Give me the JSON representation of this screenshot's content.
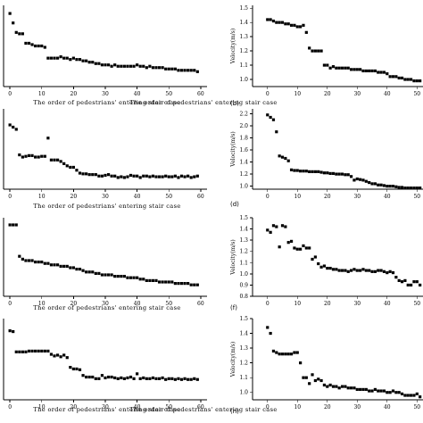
{
  "chart_data": [
    {
      "type": "scatter",
      "xlabel": "The order of pedestrians' entering stair case",
      "ylabel": "",
      "xticks": [
        0,
        10,
        20,
        30,
        40,
        50,
        60
      ],
      "xlim": [
        -2,
        62
      ],
      "ylim": [
        0.9,
        1.5
      ],
      "x": [
        0,
        1,
        2,
        3,
        4,
        5,
        6,
        7,
        8,
        9,
        10,
        11,
        12,
        13,
        14,
        15,
        16,
        17,
        18,
        19,
        20,
        21,
        22,
        23,
        24,
        25,
        26,
        27,
        28,
        29,
        30,
        31,
        32,
        33,
        34,
        35,
        36,
        37,
        38,
        39,
        40,
        41,
        42,
        43,
        44,
        45,
        46,
        47,
        48,
        49,
        50,
        51,
        52,
        53,
        54,
        55,
        56,
        57,
        58,
        59
      ],
      "y": [
        1.44,
        1.37,
        1.3,
        1.29,
        1.29,
        1.22,
        1.22,
        1.21,
        1.2,
        1.2,
        1.2,
        1.19,
        1.11,
        1.11,
        1.11,
        1.11,
        1.12,
        1.11,
        1.11,
        1.1,
        1.11,
        1.1,
        1.1,
        1.09,
        1.09,
        1.08,
        1.08,
        1.07,
        1.07,
        1.06,
        1.06,
        1.06,
        1.05,
        1.06,
        1.05,
        1.05,
        1.05,
        1.05,
        1.05,
        1.05,
        1.06,
        1.05,
        1.05,
        1.04,
        1.05,
        1.04,
        1.04,
        1.04,
        1.04,
        1.03,
        1.03,
        1.03,
        1.03,
        1.02,
        1.02,
        1.02,
        1.02,
        1.02,
        1.02,
        1.01
      ]
    },
    {
      "type": "scatter",
      "label": "(b)",
      "xlabel": "The order of pedestrians' entering stair case",
      "ylabel": "Velocity(m/s)",
      "xticks": [
        0,
        10,
        20,
        30,
        40,
        50
      ],
      "yticks": [
        "1.0",
        "1.1",
        "1.2",
        "1.3",
        "1.4",
        "1.5"
      ],
      "xlim": [
        -5,
        52
      ],
      "ylim": [
        0.95,
        1.52
      ],
      "x": [
        0,
        1,
        2,
        3,
        4,
        5,
        6,
        7,
        8,
        9,
        10,
        11,
        12,
        13,
        14,
        15,
        16,
        17,
        18,
        19,
        20,
        21,
        22,
        23,
        24,
        25,
        26,
        27,
        28,
        29,
        30,
        31,
        32,
        33,
        34,
        35,
        36,
        37,
        38,
        39,
        40,
        41,
        42,
        43,
        44,
        45,
        46,
        47,
        48,
        49,
        50,
        51
      ],
      "y": [
        1.42,
        1.42,
        1.41,
        1.4,
        1.4,
        1.4,
        1.39,
        1.39,
        1.38,
        1.38,
        1.37,
        1.37,
        1.38,
        1.33,
        1.22,
        1.2,
        1.2,
        1.2,
        1.2,
        1.1,
        1.1,
        1.08,
        1.09,
        1.08,
        1.08,
        1.08,
        1.08,
        1.08,
        1.07,
        1.07,
        1.07,
        1.07,
        1.06,
        1.06,
        1.06,
        1.06,
        1.06,
        1.05,
        1.05,
        1.05,
        1.04,
        1.02,
        1.02,
        1.02,
        1.01,
        1.01,
        1.0,
        1.0,
        1.0,
        0.99,
        0.99,
        0.99
      ]
    },
    {
      "type": "scatter",
      "xlabel": "The order of pedestrians' entering stair case",
      "ylabel": "",
      "xticks": [
        0,
        10,
        20,
        30,
        40,
        50,
        60
      ],
      "xlim": [
        -2,
        62
      ],
      "ylim": [
        1.2,
        2.3
      ],
      "x": [
        0,
        1,
        2,
        3,
        4,
        5,
        6,
        7,
        8,
        9,
        10,
        11,
        12,
        13,
        14,
        15,
        16,
        17,
        18,
        19,
        20,
        21,
        22,
        23,
        24,
        25,
        26,
        27,
        28,
        29,
        30,
        31,
        32,
        33,
        34,
        35,
        36,
        37,
        38,
        39,
        40,
        41,
        42,
        43,
        44,
        45,
        46,
        47,
        48,
        49,
        50,
        51,
        52,
        53,
        54,
        55,
        56,
        57,
        58,
        59
      ],
      "y": [
        2.08,
        2.05,
        2.02,
        1.67,
        1.64,
        1.65,
        1.66,
        1.66,
        1.64,
        1.64,
        1.65,
        1.65,
        1.9,
        1.6,
        1.6,
        1.6,
        1.58,
        1.55,
        1.52,
        1.5,
        1.5,
        1.46,
        1.42,
        1.41,
        1.41,
        1.4,
        1.4,
        1.4,
        1.38,
        1.38,
        1.39,
        1.4,
        1.38,
        1.38,
        1.36,
        1.37,
        1.36,
        1.37,
        1.39,
        1.38,
        1.38,
        1.36,
        1.38,
        1.38,
        1.37,
        1.38,
        1.37,
        1.37,
        1.37,
        1.38,
        1.37,
        1.37,
        1.38,
        1.36,
        1.38,
        1.37,
        1.38,
        1.36,
        1.37,
        1.38
      ]
    },
    {
      "type": "scatter",
      "label": "(d)",
      "xlabel": "",
      "ylabel": "Velocity(m/s)",
      "xticks": [
        0,
        10,
        20,
        30,
        40,
        50
      ],
      "yticks": [
        "1.0",
        "1.2",
        "1.4",
        "1.6",
        "1.8",
        "2.0",
        "2.2"
      ],
      "xlim": [
        -5,
        52
      ],
      "ylim": [
        0.95,
        2.28
      ],
      "x": [
        0,
        1,
        2,
        3,
        4,
        5,
        6,
        7,
        8,
        9,
        10,
        11,
        12,
        13,
        14,
        15,
        16,
        17,
        18,
        19,
        20,
        21,
        22,
        23,
        24,
        25,
        26,
        27,
        28,
        29,
        30,
        31,
        32,
        33,
        34,
        35,
        36,
        37,
        38,
        39,
        40,
        41,
        42,
        43,
        44,
        45,
        46,
        47,
        48,
        49,
        50,
        51
      ],
      "y": [
        2.18,
        2.14,
        2.1,
        1.9,
        1.5,
        1.48,
        1.46,
        1.42,
        1.27,
        1.26,
        1.26,
        1.25,
        1.25,
        1.25,
        1.24,
        1.24,
        1.24,
        1.24,
        1.23,
        1.22,
        1.22,
        1.21,
        1.21,
        1.2,
        1.2,
        1.2,
        1.19,
        1.19,
        1.16,
        1.1,
        1.12,
        1.11,
        1.1,
        1.08,
        1.06,
        1.04,
        1.04,
        1.02,
        1.02,
        1.01,
        1.0,
        1.0,
        1.0,
        0.99,
        0.98,
        0.98,
        0.97,
        0.97,
        0.97,
        0.97,
        0.97,
        0.97
      ]
    },
    {
      "type": "scatter",
      "xlabel": "The order of pedestrians' entering stair case",
      "ylabel": "",
      "xticks": [
        0,
        10,
        20,
        30,
        40,
        50,
        60
      ],
      "xlim": [
        -2,
        62
      ],
      "ylim": [
        0.95,
        1.5
      ],
      "x": [
        0,
        1,
        2,
        3,
        4,
        5,
        6,
        7,
        8,
        9,
        10,
        11,
        12,
        13,
        14,
        15,
        16,
        17,
        18,
        19,
        20,
        21,
        22,
        23,
        24,
        25,
        26,
        27,
        28,
        29,
        30,
        31,
        32,
        33,
        34,
        35,
        36,
        37,
        38,
        39,
        40,
        41,
        42,
        43,
        44,
        45,
        46,
        47,
        48,
        49,
        50,
        51,
        52,
        53,
        54,
        55,
        56,
        57,
        58,
        59
      ],
      "y": [
        1.45,
        1.45,
        1.45,
        1.23,
        1.21,
        1.2,
        1.2,
        1.2,
        1.19,
        1.19,
        1.19,
        1.18,
        1.18,
        1.17,
        1.17,
        1.17,
        1.16,
        1.16,
        1.16,
        1.15,
        1.15,
        1.14,
        1.14,
        1.13,
        1.12,
        1.12,
        1.12,
        1.11,
        1.11,
        1.1,
        1.1,
        1.1,
        1.1,
        1.09,
        1.09,
        1.09,
        1.09,
        1.08,
        1.08,
        1.08,
        1.08,
        1.07,
        1.07,
        1.06,
        1.06,
        1.06,
        1.06,
        1.05,
        1.05,
        1.05,
        1.05,
        1.05,
        1.04,
        1.04,
        1.04,
        1.04,
        1.04,
        1.03,
        1.03,
        1.03
      ]
    },
    {
      "type": "scatter",
      "label": "(f)",
      "xlabel": "",
      "ylabel": "Velocity(m/s)",
      "xticks": [
        0,
        10,
        20,
        30,
        40,
        50
      ],
      "yticks": [
        "0.8",
        "0.9",
        "1.0",
        "1.1",
        "1.2",
        "1.3",
        "1.4",
        "1.5"
      ],
      "xlim": [
        -5,
        52
      ],
      "ylim": [
        0.8,
        1.5
      ],
      "x": [
        0,
        1,
        2,
        3,
        4,
        5,
        6,
        7,
        8,
        9,
        10,
        11,
        12,
        13,
        14,
        15,
        16,
        17,
        18,
        19,
        20,
        21,
        22,
        23,
        24,
        25,
        26,
        27,
        28,
        29,
        30,
        31,
        32,
        33,
        34,
        35,
        36,
        37,
        38,
        39,
        40,
        41,
        42,
        43,
        44,
        45,
        46,
        47,
        48,
        49,
        50,
        51
      ],
      "y": [
        1.39,
        1.37,
        1.43,
        1.42,
        1.24,
        1.43,
        1.42,
        1.28,
        1.29,
        1.23,
        1.22,
        1.22,
        1.25,
        1.23,
        1.23,
        1.13,
        1.15,
        1.09,
        1.06,
        1.07,
        1.05,
        1.05,
        1.04,
        1.04,
        1.03,
        1.03,
        1.03,
        1.02,
        1.03,
        1.04,
        1.03,
        1.03,
        1.04,
        1.03,
        1.03,
        1.02,
        1.02,
        1.03,
        1.03,
        1.02,
        1.01,
        1.02,
        1.01,
        0.97,
        0.94,
        0.93,
        0.94,
        0.9,
        0.9,
        0.93,
        0.93,
        0.9
      ]
    },
    {
      "type": "scatter",
      "xlabel": "The order of pedestrians' entering stair case",
      "ylabel": "",
      "xticks": [
        0,
        10,
        20,
        30,
        40,
        50,
        60
      ],
      "xlim": [
        -2,
        62
      ],
      "ylim": [
        1.2,
        2.2
      ],
      "x": [
        0,
        1,
        2,
        3,
        4,
        5,
        6,
        7,
        8,
        9,
        10,
        11,
        12,
        13,
        14,
        15,
        16,
        17,
        18,
        19,
        20,
        21,
        22,
        23,
        24,
        25,
        26,
        27,
        28,
        29,
        30,
        31,
        32,
        33,
        34,
        35,
        36,
        37,
        38,
        39,
        40,
        41,
        42,
        43,
        44,
        45,
        46,
        47,
        48,
        49,
        50,
        51,
        52,
        53,
        54,
        55,
        56,
        57,
        58,
        59
      ],
      "y": [
        2.05,
        2.04,
        1.79,
        1.79,
        1.79,
        1.79,
        1.8,
        1.8,
        1.8,
        1.8,
        1.8,
        1.8,
        1.8,
        1.76,
        1.74,
        1.75,
        1.73,
        1.75,
        1.72,
        1.6,
        1.58,
        1.58,
        1.57,
        1.5,
        1.48,
        1.48,
        1.48,
        1.46,
        1.46,
        1.5,
        1.47,
        1.48,
        1.48,
        1.47,
        1.46,
        1.47,
        1.46,
        1.47,
        1.48,
        1.46,
        1.52,
        1.46,
        1.47,
        1.46,
        1.46,
        1.47,
        1.46,
        1.46,
        1.47,
        1.45,
        1.46,
        1.46,
        1.45,
        1.46,
        1.45,
        1.46,
        1.45,
        1.45,
        1.46,
        1.45
      ]
    },
    {
      "type": "scatter",
      "label": "(h)",
      "xlabel": "The order of pedestrians' entering stair case",
      "ylabel": "Velocity(m/s)",
      "xticks": [
        0,
        10,
        20,
        30,
        40,
        50
      ],
      "yticks": [
        "1.0",
        "1.1",
        "1.2",
        "1.3",
        "1.4",
        "1.5"
      ],
      "xlim": [
        -5,
        52
      ],
      "ylim": [
        0.95,
        1.5
      ],
      "x": [
        0,
        1,
        2,
        3,
        4,
        5,
        6,
        7,
        8,
        9,
        10,
        11,
        12,
        13,
        14,
        15,
        16,
        17,
        18,
        19,
        20,
        21,
        22,
        23,
        24,
        25,
        26,
        27,
        28,
        29,
        30,
        31,
        32,
        33,
        34,
        35,
        36,
        37,
        38,
        39,
        40,
        41,
        42,
        43,
        44,
        45,
        46,
        47,
        48,
        49,
        50,
        51
      ],
      "y": [
        1.44,
        1.4,
        1.28,
        1.27,
        1.26,
        1.26,
        1.26,
        1.26,
        1.26,
        1.27,
        1.27,
        1.2,
        1.1,
        1.1,
        1.06,
        1.12,
        1.08,
        1.09,
        1.08,
        1.05,
        1.04,
        1.05,
        1.04,
        1.04,
        1.03,
        1.04,
        1.04,
        1.03,
        1.03,
        1.03,
        1.02,
        1.02,
        1.02,
        1.02,
        1.01,
        1.01,
        1.02,
        1.01,
        1.01,
        1.01,
        1.0,
        1.0,
        1.01,
        1.0,
        1.0,
        0.99,
        0.98,
        0.98,
        0.98,
        0.98,
        0.99,
        0.97
      ]
    }
  ]
}
